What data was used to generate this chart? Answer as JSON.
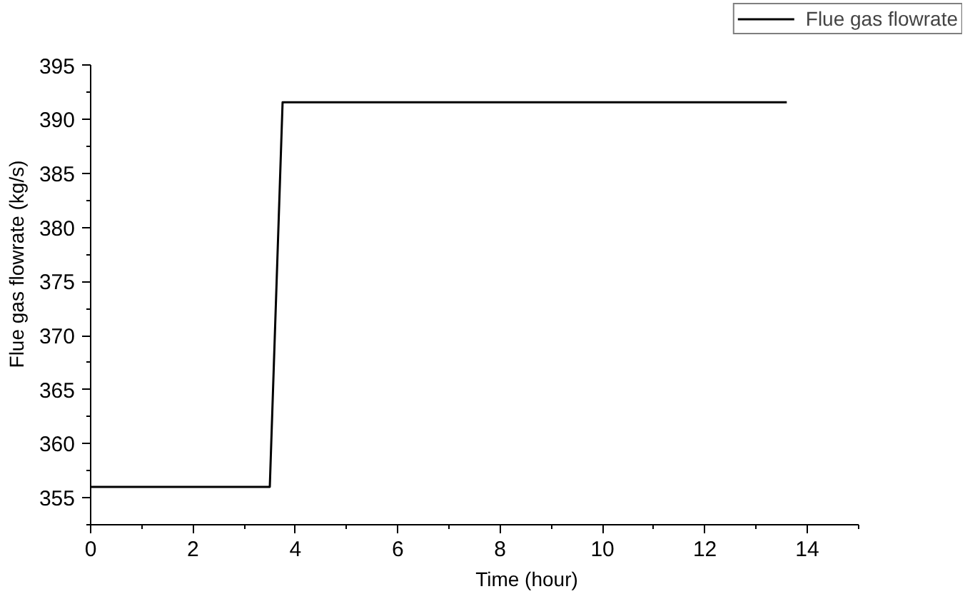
{
  "chart_data": {
    "type": "line",
    "xlabel": "Time (hour)",
    "ylabel": "Flue gas flowrate (kg/s)",
    "x": [
      0,
      3.5,
      3.75,
      13.6
    ],
    "series": [
      {
        "name": "Flue gas flowrate",
        "color": "#000000",
        "values": [
          356,
          356,
          391.6,
          391.6
        ]
      }
    ],
    "xlim": [
      0,
      15
    ],
    "ylim": [
      352.5,
      395
    ],
    "xticks": [
      0,
      2,
      4,
      6,
      8,
      10,
      12,
      14
    ],
    "yticks": [
      355,
      360,
      365,
      370,
      375,
      380,
      385,
      390,
      395
    ],
    "grid": false,
    "legend": "top right",
    "marker": "none",
    "line_style": "solid"
  }
}
